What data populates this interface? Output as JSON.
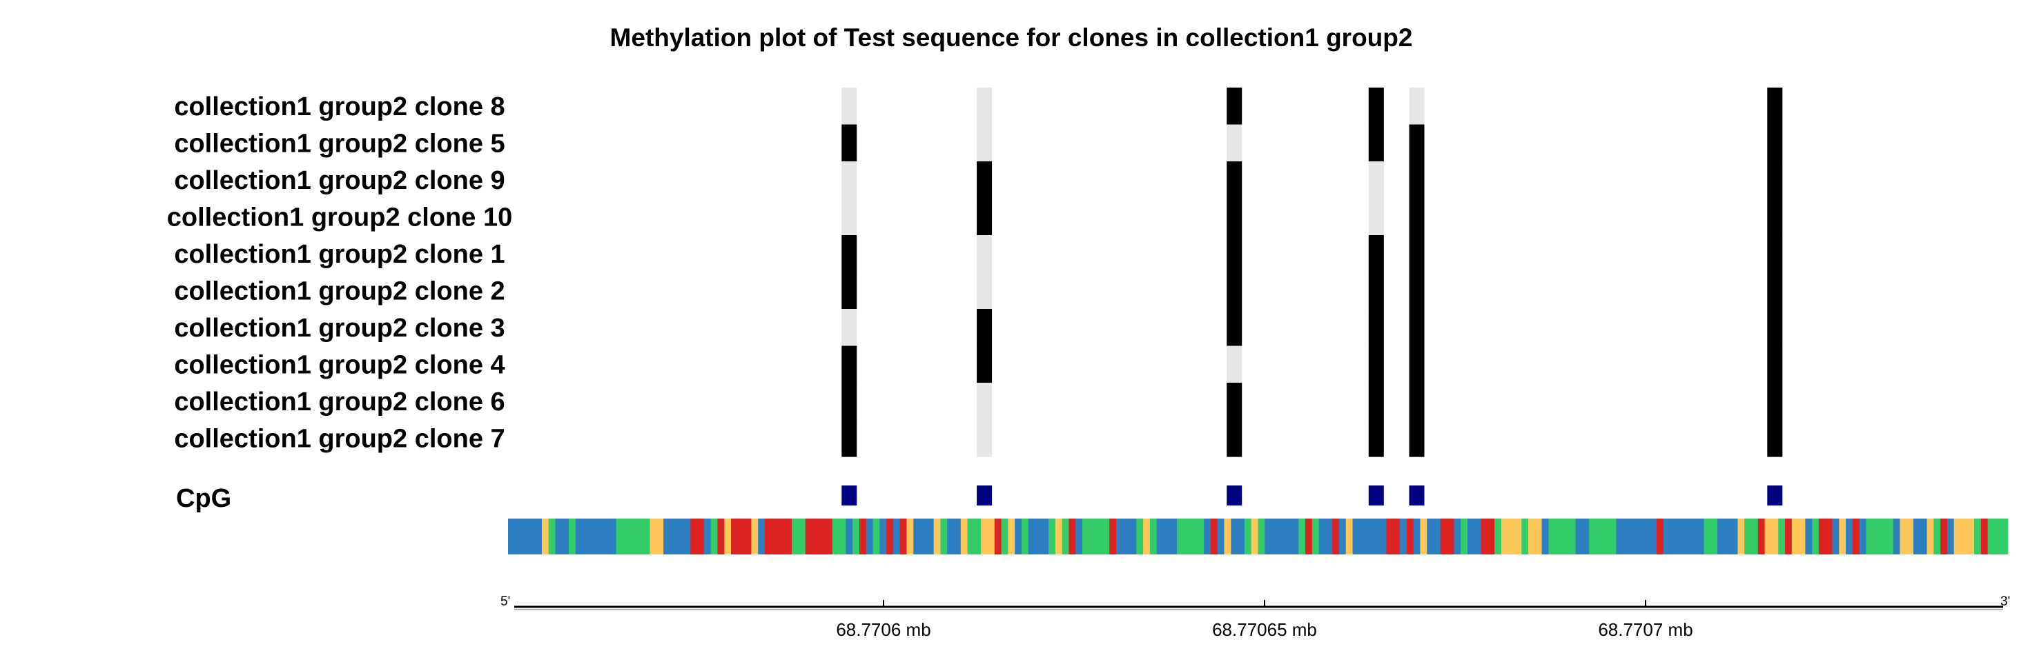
{
  "chart_data": {
    "type": "heatmap",
    "title": "Methylation plot of Test sequence for clones in collection1 group2",
    "clones": [
      "collection1 group2 clone 8",
      "collection1 group2 clone 5",
      "collection1 group2 clone 9",
      "collection1 group2 clone 10",
      "collection1 group2 clone 1",
      "collection1 group2 clone 2",
      "collection1 group2 clone 3",
      "collection1 group2 clone 4",
      "collection1 group2 clone 6",
      "collection1 group2 clone 7"
    ],
    "cpg_label": "CpG",
    "sequence_length": 222,
    "cpg_positions": [
      50,
      70,
      107,
      128,
      134,
      187
    ],
    "methylation": [
      [
        0,
        0,
        1,
        1,
        0,
        1
      ],
      [
        1,
        0,
        0,
        1,
        1,
        1
      ],
      [
        0,
        1,
        1,
        0,
        1,
        1
      ],
      [
        0,
        1,
        1,
        0,
        1,
        1
      ],
      [
        1,
        0,
        1,
        1,
        1,
        1
      ],
      [
        1,
        0,
        1,
        1,
        1,
        1
      ],
      [
        0,
        1,
        1,
        1,
        1,
        1
      ],
      [
        1,
        1,
        0,
        1,
        1,
        1
      ],
      [
        1,
        0,
        1,
        1,
        1,
        1
      ],
      [
        1,
        0,
        1,
        1,
        1,
        1
      ]
    ],
    "colors": {
      "methylated": "#000000",
      "unmethylated": "#e6e6e6",
      "cpg_marker": "#000080",
      "A": "#33cc66",
      "C": "#2e7fc1",
      "G": "#ffc75a",
      "T": "#dd2222"
    },
    "sequence": "CCCCCGACCACCCCCCAAAAAGGCCCCTTCATGTTTGCTTTTAATTTTAACATCACTCTGCCCGACCGAAGGTAGCACCCAGATCAAAATCCCAGACCCAAAACTCGCCAGACCCCCATACCTCGCCCCCTTCTCGCCTTCACCTTAGGGAGGCAAAACCAAAACCCCCCTCCCCCCAACCCGAATGGATGGCATTCGCTCAAAACGGCCGATCGGGATAA",
    "x_axis": {
      "start_label": "5'",
      "end_label": "3'",
      "unit": "mb",
      "ticks": [
        "68.7706 mb",
        "68.77065 mb",
        "68.7707 mb"
      ]
    }
  }
}
